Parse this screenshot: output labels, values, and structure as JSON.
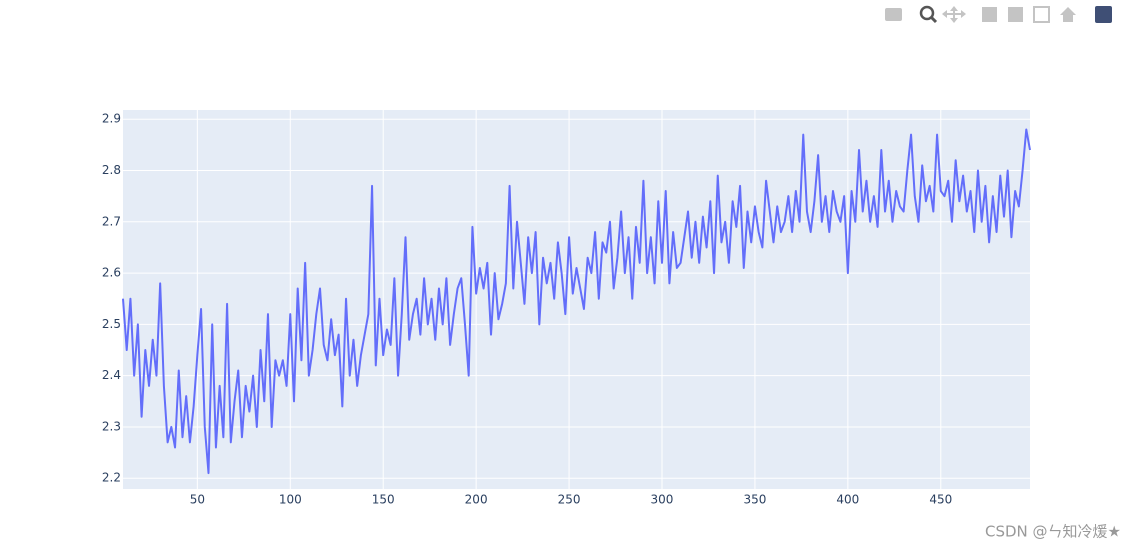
{
  "chart_data": {
    "type": "line",
    "color": "#636efa",
    "grid": true,
    "xlim": [
      10,
      498
    ],
    "ylim": [
      2.179,
      2.918
    ],
    "xticks": [
      50,
      100,
      150,
      200,
      250,
      300,
      350,
      400,
      450
    ],
    "yticks": [
      2.2,
      2.3,
      2.4,
      2.5,
      2.6,
      2.7,
      2.8,
      2.9
    ],
    "x": [
      10,
      12,
      14,
      16,
      18,
      20,
      22,
      24,
      26,
      28,
      30,
      32,
      34,
      36,
      38,
      40,
      42,
      44,
      46,
      48,
      50,
      52,
      54,
      56,
      58,
      60,
      62,
      64,
      66,
      68,
      70,
      72,
      74,
      76,
      78,
      80,
      82,
      84,
      86,
      88,
      90,
      92,
      94,
      96,
      98,
      100,
      102,
      104,
      106,
      108,
      110,
      112,
      114,
      116,
      118,
      120,
      122,
      124,
      126,
      128,
      130,
      132,
      134,
      136,
      138,
      140,
      142,
      144,
      146,
      148,
      150,
      152,
      154,
      156,
      158,
      160,
      162,
      164,
      166,
      168,
      170,
      172,
      174,
      176,
      178,
      180,
      182,
      184,
      186,
      188,
      190,
      192,
      194,
      196,
      198,
      200,
      202,
      204,
      206,
      208,
      210,
      212,
      214,
      216,
      218,
      220,
      222,
      224,
      226,
      228,
      230,
      232,
      234,
      236,
      238,
      240,
      242,
      244,
      246,
      248,
      250,
      252,
      254,
      256,
      258,
      260,
      262,
      264,
      266,
      268,
      270,
      272,
      274,
      276,
      278,
      280,
      282,
      284,
      286,
      288,
      290,
      292,
      294,
      296,
      298,
      300,
      302,
      304,
      306,
      308,
      310,
      312,
      314,
      316,
      318,
      320,
      322,
      324,
      326,
      328,
      330,
      332,
      334,
      336,
      338,
      340,
      342,
      344,
      346,
      348,
      350,
      352,
      354,
      356,
      358,
      360,
      362,
      364,
      366,
      368,
      370,
      372,
      374,
      376,
      378,
      380,
      382,
      384,
      386,
      388,
      390,
      392,
      394,
      396,
      398,
      400,
      402,
      404,
      406,
      408,
      410,
      412,
      414,
      416,
      418,
      420,
      422,
      424,
      426,
      428,
      430,
      432,
      434,
      436,
      438,
      440,
      442,
      444,
      446,
      448,
      450,
      452,
      454,
      456,
      458,
      460,
      462,
      464,
      466,
      468,
      470,
      472,
      474,
      476,
      478,
      480,
      482,
      484,
      486,
      488,
      490,
      492,
      494,
      496,
      498
    ],
    "values": [
      2.55,
      2.45,
      2.55,
      2.4,
      2.5,
      2.32,
      2.45,
      2.38,
      2.47,
      2.4,
      2.58,
      2.38,
      2.27,
      2.3,
      2.26,
      2.41,
      2.28,
      2.36,
      2.27,
      2.34,
      2.44,
      2.53,
      2.3,
      2.21,
      2.5,
      2.26,
      2.38,
      2.28,
      2.54,
      2.27,
      2.35,
      2.41,
      2.28,
      2.38,
      2.33,
      2.4,
      2.3,
      2.45,
      2.35,
      2.52,
      2.3,
      2.43,
      2.4,
      2.43,
      2.38,
      2.52,
      2.35,
      2.57,
      2.43,
      2.62,
      2.4,
      2.45,
      2.52,
      2.57,
      2.46,
      2.43,
      2.51,
      2.44,
      2.48,
      2.34,
      2.55,
      2.4,
      2.47,
      2.38,
      2.44,
      2.48,
      2.52,
      2.77,
      2.42,
      2.55,
      2.44,
      2.49,
      2.46,
      2.59,
      2.4,
      2.52,
      2.67,
      2.47,
      2.52,
      2.55,
      2.48,
      2.59,
      2.5,
      2.55,
      2.47,
      2.57,
      2.5,
      2.59,
      2.46,
      2.52,
      2.57,
      2.59,
      2.5,
      2.4,
      2.69,
      2.56,
      2.61,
      2.57,
      2.62,
      2.48,
      2.6,
      2.51,
      2.54,
      2.58,
      2.77,
      2.57,
      2.7,
      2.62,
      2.54,
      2.67,
      2.6,
      2.68,
      2.5,
      2.63,
      2.58,
      2.62,
      2.55,
      2.66,
      2.6,
      2.52,
      2.67,
      2.56,
      2.61,
      2.57,
      2.53,
      2.63,
      2.6,
      2.68,
      2.55,
      2.66,
      2.64,
      2.7,
      2.57,
      2.63,
      2.72,
      2.6,
      2.67,
      2.55,
      2.69,
      2.62,
      2.78,
      2.6,
      2.67,
      2.58,
      2.74,
      2.62,
      2.76,
      2.58,
      2.68,
      2.61,
      2.62,
      2.67,
      2.72,
      2.63,
      2.7,
      2.62,
      2.71,
      2.65,
      2.74,
      2.6,
      2.79,
      2.66,
      2.7,
      2.62,
      2.74,
      2.69,
      2.77,
      2.61,
      2.72,
      2.66,
      2.73,
      2.68,
      2.65,
      2.78,
      2.72,
      2.66,
      2.73,
      2.68,
      2.7,
      2.75,
      2.68,
      2.76,
      2.7,
      2.87,
      2.72,
      2.68,
      2.74,
      2.83,
      2.7,
      2.75,
      2.68,
      2.76,
      2.72,
      2.7,
      2.75,
      2.6,
      2.76,
      2.7,
      2.84,
      2.72,
      2.78,
      2.7,
      2.75,
      2.69,
      2.84,
      2.72,
      2.78,
      2.7,
      2.76,
      2.73,
      2.72,
      2.8,
      2.87,
      2.75,
      2.7,
      2.81,
      2.74,
      2.77,
      2.72,
      2.87,
      2.76,
      2.75,
      2.78,
      2.7,
      2.82,
      2.74,
      2.79,
      2.72,
      2.76,
      2.68,
      2.8,
      2.7,
      2.77,
      2.66,
      2.75,
      2.68,
      2.79,
      2.71,
      2.8,
      2.67,
      2.76,
      2.73,
      2.8,
      2.88,
      2.84
    ]
  },
  "watermark": "CSDN @ㄣ知冷煖★"
}
